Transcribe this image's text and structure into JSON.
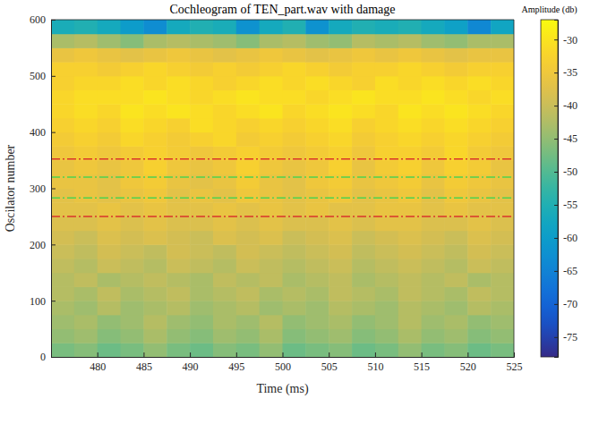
{
  "chart_data": {
    "type": "heatmap",
    "title": "Cochleogram of TEN_part.wav with damage",
    "x_label": "Time (ms)",
    "y_label": "Oscilator number",
    "xlim": [
      475,
      525
    ],
    "ylim": [
      0,
      600
    ],
    "xticks": [
      480,
      485,
      490,
      495,
      500,
      505,
      510,
      515,
      520,
      525
    ],
    "yticks": [
      0,
      100,
      200,
      300,
      400,
      500,
      600
    ],
    "grid": false,
    "x_bins": [
      475,
      477.5,
      480,
      482.5,
      485,
      487.5,
      490,
      492.5,
      495,
      497.5,
      500,
      502.5,
      505,
      507.5,
      510,
      512.5,
      515,
      517.5,
      520,
      522.5,
      525
    ],
    "y_bins": [
      0,
      25,
      50,
      75,
      100,
      125,
      150,
      175,
      200,
      225,
      250,
      275,
      300,
      325,
      350,
      375,
      400,
      425,
      450,
      475,
      500,
      525,
      550,
      575,
      600
    ],
    "z": [
      [
        -47,
        -46,
        -48,
        -47,
        -45,
        -47,
        -48,
        -46,
        -47,
        -45,
        -48,
        -47,
        -46,
        -48,
        -47,
        -45,
        -47,
        -46,
        -48,
        -47
      ],
      [
        -45,
        -44,
        -46,
        -45,
        -43,
        -45,
        -46,
        -44,
        -45,
        -43,
        -46,
        -45,
        -44,
        -46,
        -45,
        -43,
        -45,
        -44,
        -46,
        -45
      ],
      [
        -44,
        -43,
        -45,
        -44,
        -42,
        -44,
        -45,
        -43,
        -44,
        -42,
        -45,
        -44,
        -43,
        -45,
        -44,
        -42,
        -44,
        -43,
        -45,
        -44
      ],
      [
        -43,
        -44,
        -42,
        -44,
        -43,
        -42,
        -44,
        -43,
        -42,
        -44,
        -43,
        -44,
        -42,
        -43,
        -44,
        -42,
        -43,
        -44,
        -42,
        -43
      ],
      [
        -42,
        -43,
        -41,
        -43,
        -42,
        -41,
        -43,
        -42,
        -41,
        -43,
        -42,
        -43,
        -41,
        -42,
        -43,
        -41,
        -42,
        -43,
        -41,
        -42
      ],
      [
        -42,
        -41,
        -43,
        -42,
        -41,
        -42,
        -43,
        -41,
        -42,
        -41,
        -43,
        -42,
        -41,
        -43,
        -42,
        -41,
        -42,
        -41,
        -43,
        -42
      ],
      [
        -41,
        -42,
        -40,
        -41,
        -42,
        -40,
        -41,
        -42,
        -40,
        -41,
        -42,
        -41,
        -40,
        -42,
        -41,
        -40,
        -41,
        -42,
        -40,
        -41
      ],
      [
        -40,
        -41,
        -39,
        -40,
        -41,
        -39,
        -40,
        -41,
        -39,
        -40,
        -41,
        -40,
        -39,
        -41,
        -40,
        -39,
        -40,
        -41,
        -39,
        -40
      ],
      [
        -39,
        -40,
        -38,
        -39,
        -38,
        -39,
        -40,
        -38,
        -39,
        -38,
        -40,
        -39,
        -38,
        -40,
        -39,
        -38,
        -39,
        -40,
        -38,
        -39
      ],
      [
        -38,
        -38,
        -37,
        -38,
        -37,
        -38,
        -38,
        -37,
        -38,
        -37,
        -38,
        -38,
        -37,
        -38,
        -37,
        -37,
        -38,
        -38,
        -37,
        -38
      ],
      [
        -37,
        -37,
        -36,
        -37,
        -36,
        -37,
        -37,
        -36,
        -37,
        -36,
        -37,
        -36,
        -37,
        -37,
        -36,
        -36,
        -37,
        -36,
        -37,
        -37
      ],
      [
        -37,
        -36,
        -37,
        -36,
        -35,
        -37,
        -36,
        -37,
        -35,
        -36,
        -37,
        -36,
        -35,
        -37,
        -36,
        -35,
        -37,
        -35,
        -36,
        -37
      ],
      [
        -36,
        -36,
        -37,
        -35,
        -34,
        -36,
        -37,
        -36,
        -34,
        -36,
        -37,
        -35,
        -34,
        -36,
        -35,
        -34,
        -36,
        -34,
        -35,
        -36
      ],
      [
        -36,
        -35,
        -36,
        -35,
        -33,
        -35,
        -36,
        -35,
        -33,
        -35,
        -36,
        -35,
        -33,
        -36,
        -34,
        -33,
        -35,
        -33,
        -34,
        -36
      ],
      [
        -35,
        -34,
        -35,
        -34,
        -33,
        -34,
        -35,
        -34,
        -33,
        -34,
        -35,
        -34,
        -33,
        -35,
        -33,
        -33,
        -34,
        -32,
        -34,
        -35
      ],
      [
        -34,
        -33,
        -34,
        -32,
        -33,
        -34,
        -33,
        -32,
        -34,
        -33,
        -34,
        -33,
        -32,
        -34,
        -33,
        -32,
        -33,
        -32,
        -33,
        -34
      ],
      [
        -33,
        -32,
        -33,
        -31,
        -32,
        -33,
        -31,
        -32,
        -33,
        -32,
        -33,
        -32,
        -31,
        -33,
        -32,
        -31,
        -32,
        -31,
        -32,
        -33
      ],
      [
        -32,
        -31,
        -32,
        -30,
        -31,
        -30,
        -31,
        -32,
        -31,
        -30,
        -32,
        -31,
        -30,
        -31,
        -32,
        -30,
        -31,
        -30,
        -31,
        -32
      ],
      [
        -32,
        -31,
        -31,
        -31,
        -30,
        -31,
        -32,
        -31,
        -30,
        -31,
        -31,
        -32,
        -31,
        -30,
        -31,
        -31,
        -30,
        -31,
        -32,
        -31
      ],
      [
        -33,
        -32,
        -32,
        -31,
        -32,
        -31,
        -32,
        -33,
        -32,
        -31,
        -32,
        -31,
        -32,
        -33,
        -31,
        -32,
        -31,
        -32,
        -31,
        -32
      ],
      [
        -33,
        -33,
        -34,
        -33,
        -32,
        -33,
        -34,
        -33,
        -34,
        -33,
        -32,
        -33,
        -34,
        -33,
        -33,
        -32,
        -33,
        -34,
        -33,
        -33
      ],
      [
        -36,
        -35,
        -36,
        -37,
        -36,
        -35,
        -36,
        -37,
        -36,
        -35,
        -36,
        -37,
        -36,
        -35,
        -36,
        -35,
        -36,
        -37,
        -36,
        -36
      ],
      [
        -43,
        -42,
        -44,
        -46,
        -43,
        -42,
        -43,
        -44,
        -46,
        -43,
        -42,
        -44,
        -45,
        -42,
        -43,
        -42,
        -44,
        -45,
        -43,
        -43
      ],
      [
        -56,
        -55,
        -57,
        -60,
        -63,
        -57,
        -55,
        -56,
        -62,
        -57,
        -55,
        -62,
        -57,
        -55,
        -56,
        -55,
        -57,
        -59,
        -64,
        -58
      ]
    ],
    "colorbar": {
      "label": "Amplitude (db)",
      "range": [
        -78,
        -27
      ],
      "ticks": [
        -75,
        -70,
        -65,
        -60,
        -55,
        -50,
        -45,
        -40,
        -35,
        -30
      ]
    },
    "hlines": [
      {
        "value": 352,
        "color": "#d9342b",
        "line_style": "dashdot"
      },
      {
        "value": 320,
        "color": "#4fd24f",
        "line_style": "dashdot"
      },
      {
        "value": 283,
        "color": "#4fd24f",
        "line_style": "dashdot"
      },
      {
        "value": 250,
        "color": "#d9342b",
        "line_style": "dashdot"
      }
    ]
  }
}
